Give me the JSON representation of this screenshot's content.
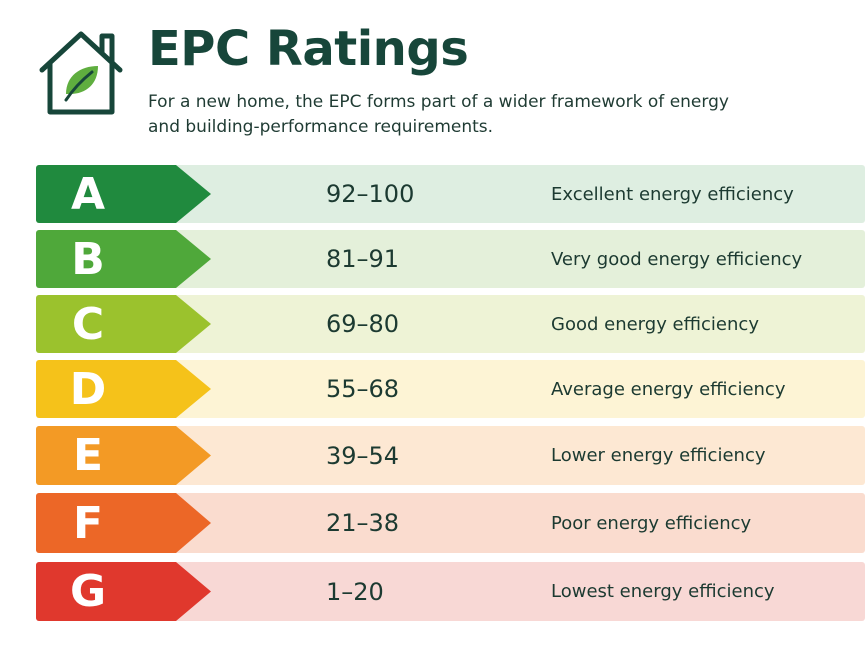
{
  "header": {
    "icon": "house-leaf-icon",
    "title": "EPC Ratings",
    "subtitle": "For a new home, the EPC forms part of a wider framework of energy and building-performance requirements."
  },
  "ratings": [
    {
      "letter": "A",
      "range": "92–100",
      "description": "Excellent energy efficiency",
      "color": "#208a3e",
      "tint": "#deeee1"
    },
    {
      "letter": "B",
      "range": "81–91",
      "description": "Very good energy efficiency",
      "color": "#4fa83a",
      "tint": "#e4f0da"
    },
    {
      "letter": "C",
      "range": "69–80",
      "description": "Good energy efficiency",
      "color": "#9bc22d",
      "tint": "#eef3d6"
    },
    {
      "letter": "D",
      "range": "55–68",
      "description": "Average energy efficiency",
      "color": "#f5c21a",
      "tint": "#fdf4d5"
    },
    {
      "letter": "E",
      "range": "39–54",
      "description": "Lower energy efficiency",
      "color": "#f39a25",
      "tint": "#fde8d3"
    },
    {
      "letter": "F",
      "range": "21–38",
      "description": "Poor energy efficiency",
      "color": "#ec6727",
      "tint": "#fadccf"
    },
    {
      "letter": "G",
      "range": "1–20",
      "description": "Lowest energy efficiency",
      "color": "#e0382d",
      "tint": "#f8d8d5"
    }
  ]
}
